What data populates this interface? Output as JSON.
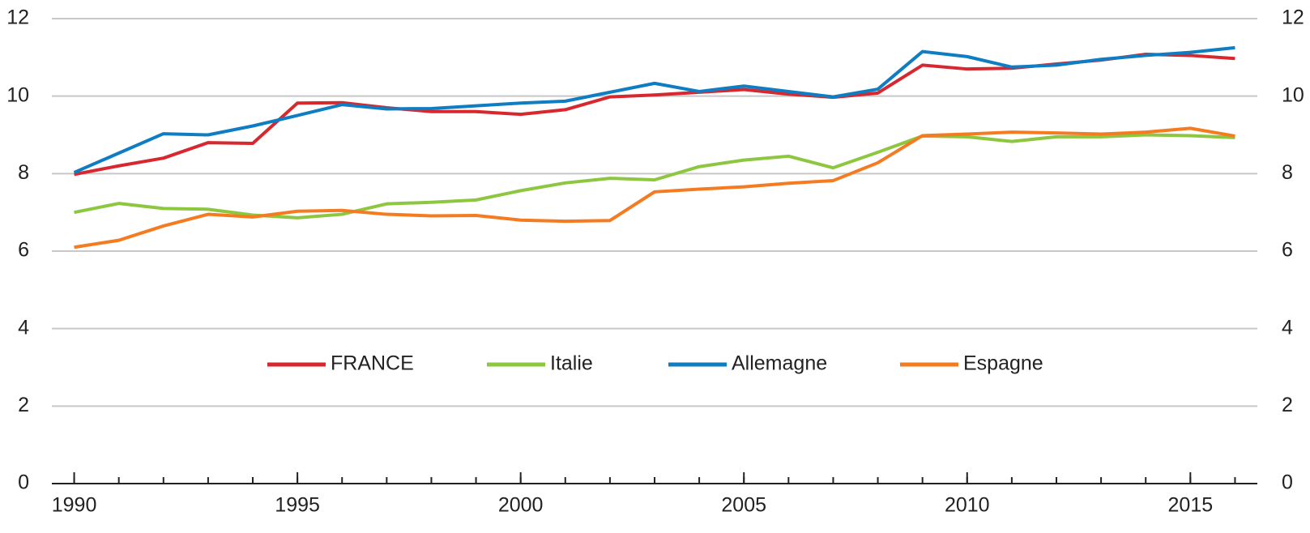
{
  "chart_data": {
    "type": "line",
    "x": [
      1990,
      1991,
      1992,
      1993,
      1994,
      1995,
      1996,
      1997,
      1998,
      1999,
      2000,
      2001,
      2002,
      2003,
      2004,
      2005,
      2006,
      2007,
      2008,
      2009,
      2010,
      2011,
      2012,
      2013,
      2014,
      2015,
      2016
    ],
    "series": [
      {
        "name": "FRANCE",
        "color": "#d7282f",
        "values": [
          7.98,
          8.2,
          8.4,
          8.8,
          8.78,
          9.82,
          9.83,
          9.7,
          9.6,
          9.6,
          9.53,
          9.65,
          9.98,
          10.03,
          10.1,
          10.17,
          10.05,
          9.97,
          10.08,
          10.8,
          10.7,
          10.72,
          10.83,
          10.93,
          11.08,
          11.05,
          10.97
        ]
      },
      {
        "name": "Italie",
        "color": "#8dc63f",
        "values": [
          7.0,
          7.23,
          7.1,
          7.08,
          6.93,
          6.86,
          6.95,
          7.22,
          7.26,
          7.32,
          7.56,
          7.76,
          7.88,
          7.84,
          8.18,
          8.35,
          8.45,
          8.15,
          8.55,
          8.97,
          8.95,
          8.83,
          8.95,
          8.95,
          9.0,
          8.98,
          8.93
        ]
      },
      {
        "name": "Allemagne",
        "color": "#0f7dc2",
        "values": [
          8.03,
          8.53,
          9.03,
          9.0,
          9.23,
          9.5,
          9.78,
          9.67,
          9.68,
          9.75,
          9.82,
          9.87,
          10.1,
          10.33,
          10.12,
          10.26,
          10.12,
          9.98,
          10.18,
          11.15,
          11.02,
          10.75,
          10.8,
          10.95,
          11.05,
          11.13,
          11.25
        ]
      },
      {
        "name": "Espagne",
        "color": "#f47b20",
        "values": [
          6.1,
          6.28,
          6.65,
          6.95,
          6.88,
          7.03,
          7.05,
          6.95,
          6.91,
          6.92,
          6.8,
          6.77,
          6.79,
          7.53,
          7.6,
          7.66,
          7.75,
          7.82,
          8.28,
          8.98,
          9.02,
          9.07,
          9.05,
          9.02,
          9.07,
          9.17,
          8.97
        ]
      }
    ],
    "xlim": [
      1989.5,
      2016.5
    ],
    "xticks": [
      1990,
      1995,
      2000,
      2005,
      2010,
      2015
    ],
    "ylim": [
      0,
      12
    ],
    "yticks": [
      0,
      2,
      4,
      6,
      8,
      10,
      12
    ],
    "grid": true,
    "legend_position": "center"
  }
}
